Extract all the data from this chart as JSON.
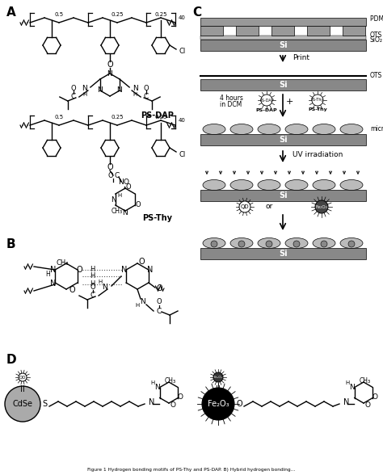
{
  "title": "Figure 1",
  "caption": "Figure 1 Hydrogen bonding motifs of PS-Thy and PS-DAP. B) Hybrid hydrogen bonding",
  "background_color": "#ffffff",
  "panel_labels": [
    "A",
    "B",
    "C",
    "D"
  ],
  "panel_label_fontsize": 12,
  "panel_label_fontweight": "bold",
  "figsize": [
    4.74,
    5.88
  ],
  "dpi": 100
}
